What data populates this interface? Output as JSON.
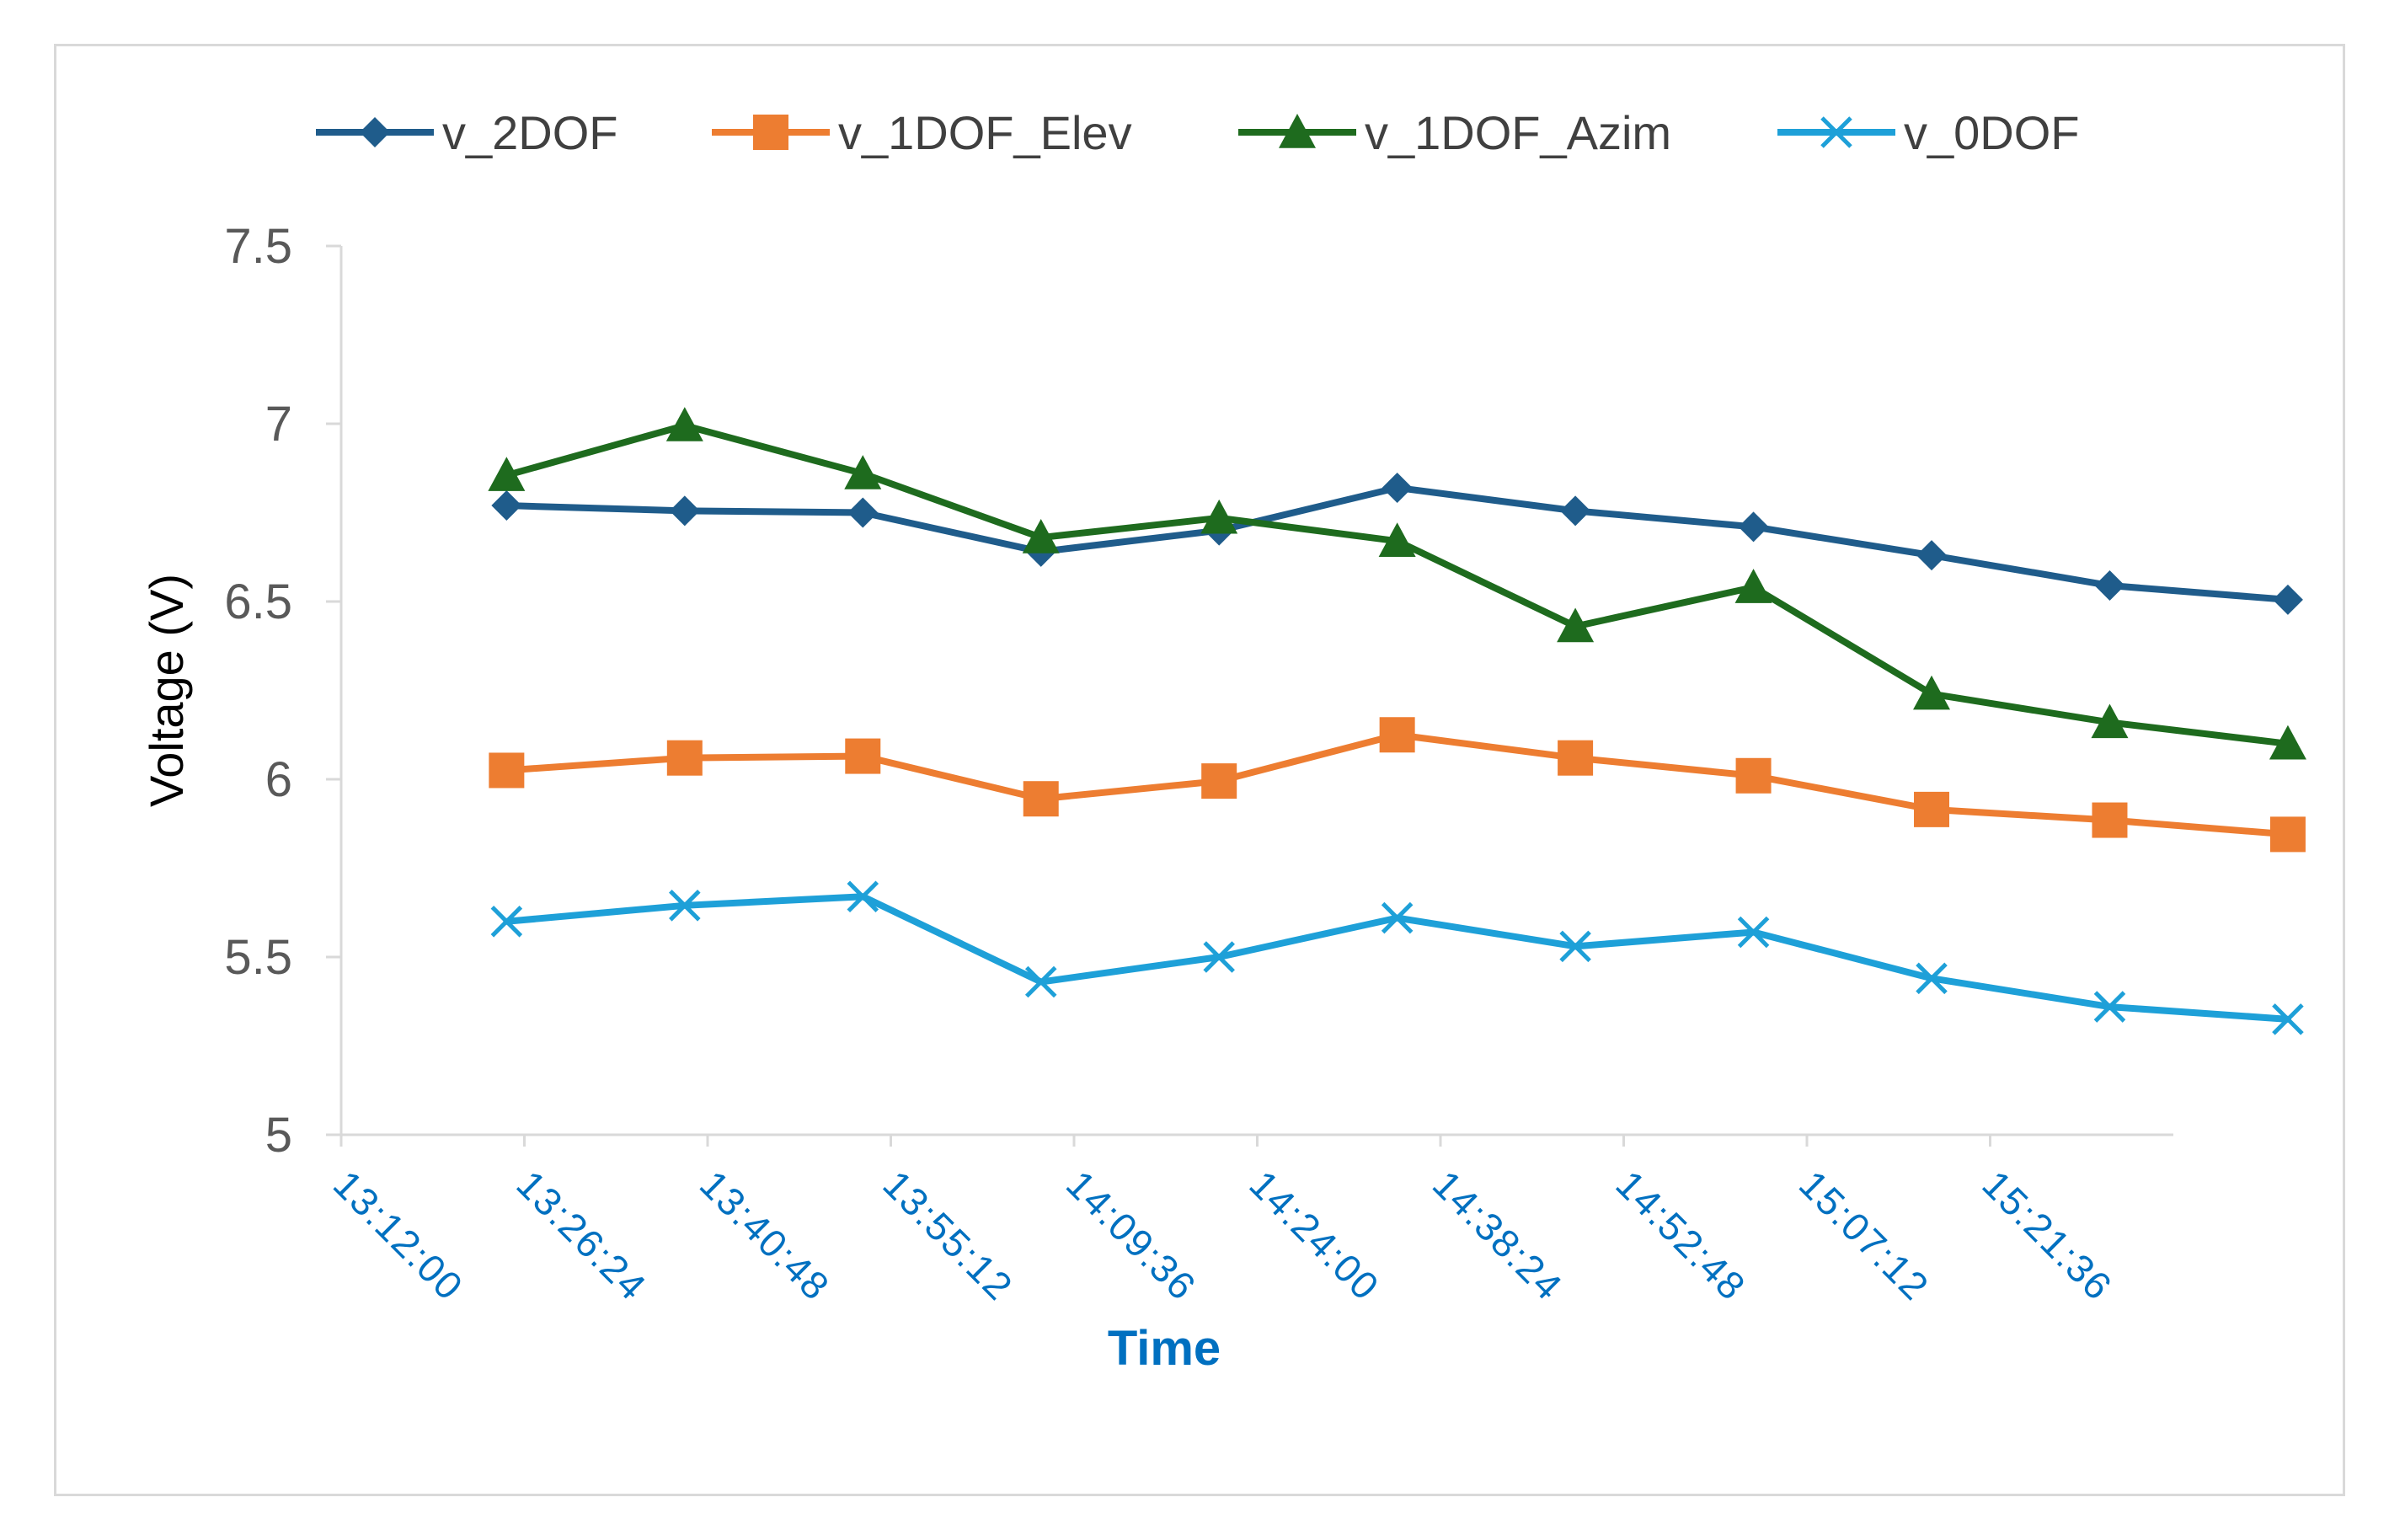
{
  "chart_data": {
    "type": "line",
    "title": "",
    "xlabel": "Time",
    "ylabel": "Voltage (V)",
    "ylim": [
      5,
      7.5
    ],
    "yticks": [
      "5",
      "5.5",
      "6",
      "6.5",
      "7",
      "7.5"
    ],
    "ytick_values": [
      5,
      5.5,
      6,
      6.5,
      7,
      7.5
    ],
    "xlim_minutes": [
      792,
      936
    ],
    "xticks": [
      "13:12:00",
      "13:26:24",
      "13:40:48",
      "13:55:12",
      "14:09:36",
      "14:24:00",
      "14:38:24",
      "14:52:48",
      "15:07:12",
      "15:21:36"
    ],
    "xtick_values_minutes": [
      792,
      806.4,
      820.8,
      835.2,
      849.6,
      864,
      878.4,
      892.8,
      907.2,
      921.6
    ],
    "x_minutes": [
      805,
      819,
      833,
      847,
      861,
      875,
      889,
      903,
      917,
      931,
      945
    ],
    "x_labels": [
      "13:25",
      "13:39",
      "13:53",
      "14:07",
      "14:21",
      "14:35",
      "14:49",
      "15:03",
      "15:17",
      "15:31",
      "15:45"
    ],
    "grid": false,
    "legend_position": "top",
    "series": [
      {
        "name": "v_2DOF",
        "color": "#1f5c8b",
        "marker": "diamond",
        "values": [
          6.77,
          6.755,
          6.75,
          6.64,
          6.7,
          6.82,
          6.755,
          6.71,
          6.63,
          6.545,
          6.505
        ]
      },
      {
        "name": "v_1DOF_Elev",
        "color": "#ed7d31",
        "marker": "square",
        "values": [
          6.025,
          6.06,
          6.065,
          5.945,
          5.995,
          6.125,
          6.06,
          6.01,
          5.915,
          5.885,
          5.845
        ]
      },
      {
        "name": "v_1DOF_Azim",
        "color": "#1e6b1e",
        "marker": "triangle",
        "values": [
          6.855,
          6.995,
          6.86,
          6.68,
          6.735,
          6.67,
          6.43,
          6.54,
          6.24,
          6.16,
          6.1
        ]
      },
      {
        "name": "v_0DOF",
        "color": "#1ea0d8",
        "marker": "x",
        "values": [
          5.6,
          5.645,
          5.67,
          5.43,
          5.5,
          5.61,
          5.53,
          5.57,
          5.44,
          5.36,
          5.325
        ]
      }
    ]
  }
}
